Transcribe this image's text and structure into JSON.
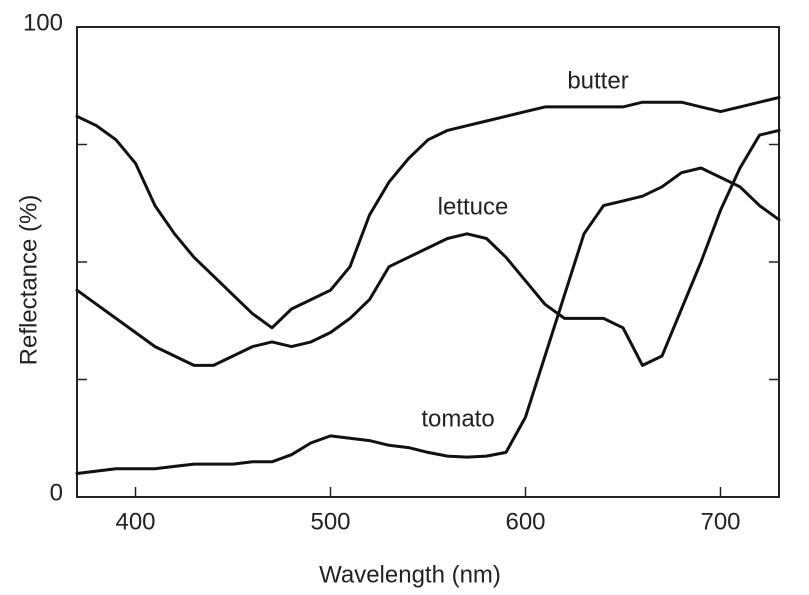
{
  "chart_data": {
    "type": "line",
    "x_label": "Wavelength (nm)",
    "y_label": "Reflectance (%)",
    "x": [
      370,
      380,
      390,
      400,
      410,
      420,
      430,
      440,
      450,
      460,
      470,
      480,
      490,
      500,
      510,
      520,
      530,
      540,
      550,
      560,
      570,
      580,
      590,
      600,
      610,
      620,
      630,
      640,
      650,
      660,
      670,
      680,
      690,
      700,
      710,
      720,
      730
    ],
    "series": [
      {
        "name": "butter",
        "color": "#111111",
        "values": [
          81,
          79,
          76,
          71,
          62,
          56,
          51,
          47,
          43,
          39,
          36,
          40,
          42,
          44,
          49,
          60,
          67,
          72,
          76,
          78,
          79,
          80,
          81,
          82,
          83,
          83,
          83,
          83,
          83,
          84,
          84,
          84,
          83,
          82,
          83,
          84,
          85
        ]
      },
      {
        "name": "lettuce",
        "color": "#111111",
        "values": [
          44,
          41,
          38,
          35,
          32,
          30,
          28,
          28,
          30,
          32,
          33,
          32,
          33,
          35,
          38,
          42,
          49,
          51,
          53,
          55,
          56,
          55,
          51,
          46,
          41,
          38,
          38,
          38,
          36,
          28,
          30,
          40,
          50,
          61,
          70,
          77,
          78
        ]
      },
      {
        "name": "tomato",
        "color": "#111111",
        "values": [
          5,
          5.5,
          6,
          6,
          6,
          6.5,
          7,
          7,
          7,
          7.5,
          7.5,
          9,
          11.5,
          13,
          12.5,
          12,
          11,
          10.5,
          9.5,
          8.7,
          8.5,
          8.7,
          9.5,
          17,
          30,
          43,
          56,
          62,
          63,
          64,
          66,
          69,
          70,
          68,
          66,
          62,
          59
        ]
      }
    ],
    "xlim": [
      370,
      730
    ],
    "xticks": [
      400,
      500,
      600,
      700
    ],
    "ylim": [
      0,
      100
    ],
    "yticks": [
      0,
      100
    ],
    "yminor_ticks": [
      25,
      50,
      75
    ],
    "grid": false
  }
}
